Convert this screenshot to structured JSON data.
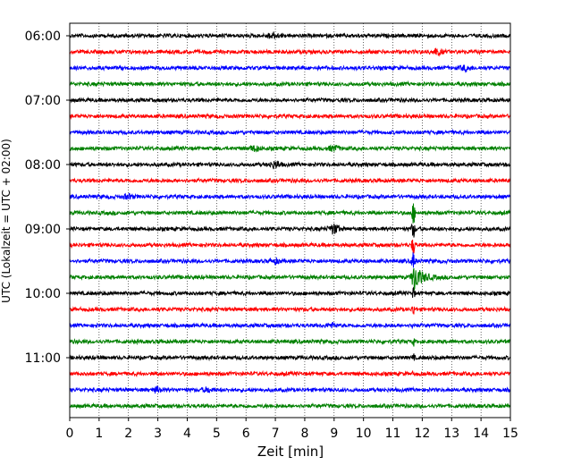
{
  "chart_data": {
    "type": "line",
    "subtype": "helicorder-seismogram",
    "title": "",
    "xlabel": "Zeit  [min]",
    "ylabel": "UTC (Lokalzeit = UTC + 02:00)",
    "xlim": [
      0,
      15
    ],
    "x_ticks": [
      0,
      1,
      2,
      3,
      4,
      5,
      6,
      7,
      8,
      9,
      10,
      11,
      12,
      13,
      14,
      15
    ],
    "y_tick_labels": [
      "06:00",
      "07:00",
      "08:00",
      "09:00",
      "10:00",
      "11:00"
    ],
    "trace_start_times": [
      "06:00",
      "06:15",
      "06:30",
      "06:45",
      "07:00",
      "07:15",
      "07:30",
      "07:45",
      "08:00",
      "08:15",
      "08:30",
      "08:45",
      "09:00",
      "09:15",
      "09:30",
      "09:45",
      "10:00",
      "10:15",
      "10:30",
      "10:45",
      "11:00",
      "11:15",
      "11:30",
      "11:45"
    ],
    "trace_colors": [
      "#000000",
      "#ff0000",
      "#0000ff",
      "#008000"
    ],
    "grid": "vertical dotted at each minute",
    "events": [
      {
        "time_min": 11.7,
        "trace_start": "09:45",
        "description": "large amplitude event"
      },
      {
        "time_min": 9.0,
        "trace_start": "09:00",
        "description": "small burst"
      },
      {
        "time_min": 7.0,
        "trace_start": "08:00",
        "description": "small burst"
      }
    ]
  }
}
